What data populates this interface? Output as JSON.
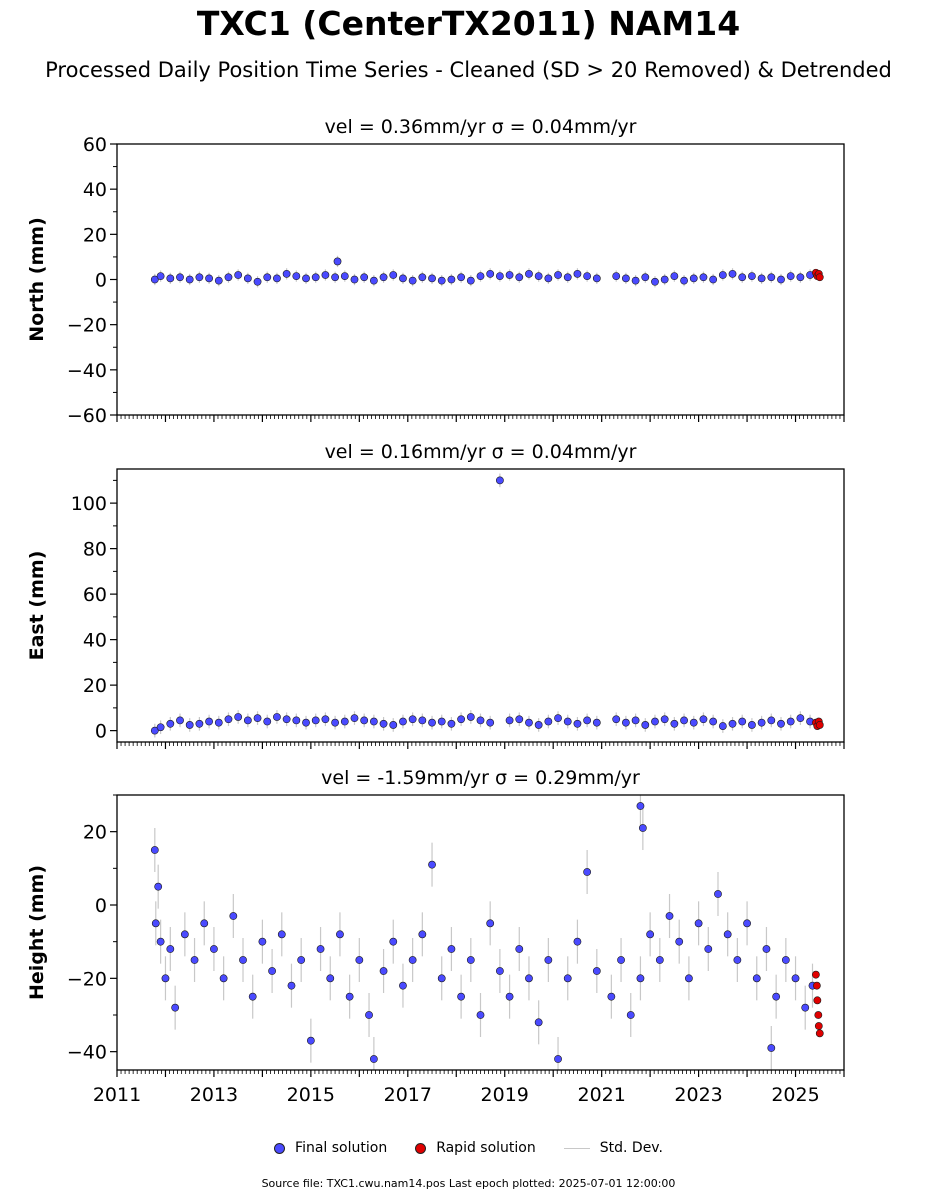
{
  "title": "TXC1 (CenterTX2011) NAM14",
  "subtitle": "Processed Daily Position Time Series - Cleaned (SD > 20 Removed) & Detrended",
  "legend": {
    "final": "Final solution",
    "rapid": "Rapid solution",
    "std": "Std. Dev."
  },
  "footer": "Source file: TXC1.cwu.nam14.pos  Last epoch plotted: 2025-07-01 12:00:00",
  "colors": {
    "final": "#4a4aff",
    "rapid": "#e00000",
    "std": "#c8c8c8",
    "edge": "#1a1a1a"
  },
  "chart_data": [
    {
      "type": "scatter",
      "title": "vel = 0.36mm/yr   σ = 0.04mm/yr",
      "ylabel": "North (mm)",
      "xlim": [
        2011.0,
        2026.0
      ],
      "ylim": [
        -60,
        60
      ],
      "yticks": [
        "−60",
        "−40",
        "−20",
        "0",
        "20",
        "40",
        "60"
      ],
      "ytick_values": [
        -60,
        -40,
        -20,
        0,
        20,
        40,
        60
      ],
      "series": [
        {
          "points": [
            [
              2011.78,
              0.0
            ],
            [
              2011.9,
              1.5
            ],
            [
              2012.1,
              0.5
            ],
            [
              2012.3,
              1.0
            ],
            [
              2012.5,
              0.0
            ],
            [
              2012.7,
              1.0
            ],
            [
              2012.9,
              0.5
            ],
            [
              2013.1,
              -0.5
            ],
            [
              2013.3,
              1.0
            ],
            [
              2013.5,
              2.0
            ],
            [
              2013.7,
              0.5
            ],
            [
              2013.9,
              -1.0
            ],
            [
              2014.1,
              1.0
            ],
            [
              2014.3,
              0.5
            ],
            [
              2014.5,
              2.5
            ],
            [
              2014.7,
              1.5
            ],
            [
              2014.9,
              0.5
            ],
            [
              2015.1,
              1.0
            ],
            [
              2015.3,
              2.0
            ],
            [
              2015.5,
              1.0
            ],
            [
              2015.55,
              8.0
            ],
            [
              2015.7,
              1.5
            ],
            [
              2015.9,
              0.0
            ],
            [
              2016.1,
              1.0
            ],
            [
              2016.3,
              -0.5
            ],
            [
              2016.5,
              1.0
            ],
            [
              2016.7,
              2.0
            ],
            [
              2016.9,
              0.5
            ],
            [
              2017.1,
              -0.5
            ],
            [
              2017.3,
              1.0
            ],
            [
              2017.5,
              0.5
            ],
            [
              2017.7,
              -0.5
            ],
            [
              2017.9,
              0.0
            ],
            [
              2018.1,
              1.0
            ],
            [
              2018.3,
              -0.5
            ],
            [
              2018.5,
              1.5
            ],
            [
              2018.7,
              2.5
            ],
            [
              2018.9,
              1.5
            ],
            [
              2019.1,
              2.0
            ],
            [
              2019.3,
              1.0
            ],
            [
              2019.5,
              2.5
            ],
            [
              2019.7,
              1.5
            ],
            [
              2019.9,
              0.5
            ],
            [
              2020.1,
              2.0
            ],
            [
              2020.3,
              1.0
            ],
            [
              2020.5,
              2.5
            ],
            [
              2020.7,
              1.5
            ],
            [
              2020.9,
              0.5
            ],
            [
              2021.3,
              1.5
            ],
            [
              2021.5,
              0.5
            ],
            [
              2021.7,
              -0.5
            ],
            [
              2021.9,
              1.0
            ],
            [
              2022.1,
              -1.0
            ],
            [
              2022.3,
              0.0
            ],
            [
              2022.5,
              1.5
            ],
            [
              2022.7,
              -0.5
            ],
            [
              2022.9,
              0.5
            ],
            [
              2023.1,
              1.0
            ],
            [
              2023.3,
              0.0
            ],
            [
              2023.5,
              2.0
            ],
            [
              2023.7,
              2.5
            ],
            [
              2023.9,
              1.0
            ],
            [
              2024.1,
              1.5
            ],
            [
              2024.3,
              0.5
            ],
            [
              2024.5,
              1.0
            ],
            [
              2024.7,
              0.0
            ],
            [
              2024.9,
              1.5
            ],
            [
              2025.1,
              1.0
            ],
            [
              2025.3,
              2.0
            ]
          ],
          "std": 2.5
        },
        {
          "points": [
            [
              2025.42,
              3.0
            ],
            [
              2025.45,
              1.5
            ],
            [
              2025.48,
              2.5
            ],
            [
              2025.5,
              1.0
            ]
          ]
        }
      ]
    },
    {
      "type": "scatter",
      "title": "vel = 0.16mm/yr   σ = 0.04mm/yr",
      "ylabel": "East (mm)",
      "xlim": [
        2011.0,
        2026.0
      ],
      "ylim": [
        -5,
        115
      ],
      "yticks": [
        "0",
        "20",
        "40",
        "60",
        "80",
        "100"
      ],
      "ytick_values": [
        0,
        20,
        40,
        60,
        80,
        100
      ],
      "series": [
        {
          "points": [
            [
              2011.78,
              0.0
            ],
            [
              2011.9,
              1.5
            ],
            [
              2012.1,
              3.0
            ],
            [
              2012.3,
              4.5
            ],
            [
              2012.5,
              2.5
            ],
            [
              2012.7,
              3.0
            ],
            [
              2012.9,
              4.0
            ],
            [
              2013.1,
              3.5
            ],
            [
              2013.3,
              5.0
            ],
            [
              2013.5,
              6.0
            ],
            [
              2013.7,
              4.5
            ],
            [
              2013.9,
              5.5
            ],
            [
              2014.1,
              4.0
            ],
            [
              2014.3,
              6.0
            ],
            [
              2014.5,
              5.0
            ],
            [
              2014.7,
              4.5
            ],
            [
              2014.9,
              3.5
            ],
            [
              2015.1,
              4.5
            ],
            [
              2015.3,
              5.0
            ],
            [
              2015.5,
              3.5
            ],
            [
              2015.7,
              4.0
            ],
            [
              2015.9,
              5.5
            ],
            [
              2016.1,
              4.5
            ],
            [
              2016.3,
              4.0
            ],
            [
              2016.5,
              3.0
            ],
            [
              2016.7,
              2.5
            ],
            [
              2016.9,
              4.0
            ],
            [
              2017.1,
              5.0
            ],
            [
              2017.3,
              4.5
            ],
            [
              2017.5,
              3.5
            ],
            [
              2017.7,
              4.0
            ],
            [
              2017.9,
              3.0
            ],
            [
              2018.1,
              5.0
            ],
            [
              2018.3,
              6.0
            ],
            [
              2018.5,
              4.5
            ],
            [
              2018.7,
              3.5
            ],
            [
              2018.9,
              110.0
            ],
            [
              2019.1,
              4.5
            ],
            [
              2019.3,
              5.0
            ],
            [
              2019.5,
              3.5
            ],
            [
              2019.7,
              2.5
            ],
            [
              2019.9,
              4.0
            ],
            [
              2020.1,
              5.5
            ],
            [
              2020.3,
              4.0
            ],
            [
              2020.5,
              3.0
            ],
            [
              2020.7,
              4.5
            ],
            [
              2020.9,
              3.5
            ],
            [
              2021.3,
              5.0
            ],
            [
              2021.5,
              3.5
            ],
            [
              2021.7,
              4.5
            ],
            [
              2021.9,
              2.5
            ],
            [
              2022.1,
              4.0
            ],
            [
              2022.3,
              5.0
            ],
            [
              2022.5,
              3.0
            ],
            [
              2022.7,
              4.5
            ],
            [
              2022.9,
              3.5
            ],
            [
              2023.1,
              5.0
            ],
            [
              2023.3,
              4.0
            ],
            [
              2023.5,
              2.0
            ],
            [
              2023.7,
              3.0
            ],
            [
              2023.9,
              4.0
            ],
            [
              2024.1,
              2.5
            ],
            [
              2024.3,
              3.5
            ],
            [
              2024.5,
              4.5
            ],
            [
              2024.7,
              3.0
            ],
            [
              2024.9,
              4.0
            ],
            [
              2025.1,
              5.5
            ],
            [
              2025.3,
              4.0
            ]
          ],
          "std": 3.0
        },
        {
          "points": [
            [
              2025.42,
              3.5
            ],
            [
              2025.45,
              2.0
            ],
            [
              2025.48,
              4.0
            ],
            [
              2025.5,
              2.5
            ]
          ]
        }
      ]
    },
    {
      "type": "scatter",
      "title": "vel = -1.59mm/yr   σ = 0.29mm/yr",
      "ylabel": "Height (mm)",
      "xlim": [
        2011.0,
        2026.0
      ],
      "ylim": [
        -45,
        30
      ],
      "yticks": [
        "−40",
        "−20",
        "0",
        "20"
      ],
      "ytick_values": [
        -40,
        -20,
        0,
        20
      ],
      "xticks": [
        "2011",
        "2013",
        "2015",
        "2017",
        "2019",
        "2021",
        "2023",
        "2025"
      ],
      "xtick_values": [
        2011,
        2013,
        2015,
        2017,
        2019,
        2021,
        2023,
        2025
      ],
      "series": [
        {
          "points": [
            [
              2011.78,
              15.0
            ],
            [
              2011.8,
              -5.0
            ],
            [
              2011.85,
              5.0
            ],
            [
              2011.9,
              -10.0
            ],
            [
              2012.0,
              -20.0
            ],
            [
              2012.1,
              -12.0
            ],
            [
              2012.2,
              -28.0
            ],
            [
              2012.4,
              -8.0
            ],
            [
              2012.6,
              -15.0
            ],
            [
              2012.8,
              -5.0
            ],
            [
              2013.0,
              -12.0
            ],
            [
              2013.2,
              -20.0
            ],
            [
              2013.4,
              -3.0
            ],
            [
              2013.6,
              -15.0
            ],
            [
              2013.8,
              -25.0
            ],
            [
              2014.0,
              -10.0
            ],
            [
              2014.2,
              -18.0
            ],
            [
              2014.4,
              -8.0
            ],
            [
              2014.6,
              -22.0
            ],
            [
              2014.8,
              -15.0
            ],
            [
              2015.0,
              -37.0
            ],
            [
              2015.2,
              -12.0
            ],
            [
              2015.4,
              -20.0
            ],
            [
              2015.6,
              -8.0
            ],
            [
              2015.8,
              -25.0
            ],
            [
              2016.0,
              -15.0
            ],
            [
              2016.2,
              -30.0
            ],
            [
              2016.3,
              -42.0
            ],
            [
              2016.5,
              -18.0
            ],
            [
              2016.7,
              -10.0
            ],
            [
              2016.9,
              -22.0
            ],
            [
              2017.1,
              -15.0
            ],
            [
              2017.3,
              -8.0
            ],
            [
              2017.5,
              11.0
            ],
            [
              2017.7,
              -20.0
            ],
            [
              2017.9,
              -12.0
            ],
            [
              2018.1,
              -25.0
            ],
            [
              2018.3,
              -15.0
            ],
            [
              2018.5,
              -30.0
            ],
            [
              2018.7,
              -5.0
            ],
            [
              2018.9,
              -18.0
            ],
            [
              2019.1,
              -25.0
            ],
            [
              2019.3,
              -12.0
            ],
            [
              2019.5,
              -20.0
            ],
            [
              2019.7,
              -32.0
            ],
            [
              2019.9,
              -15.0
            ],
            [
              2020.1,
              -42.0
            ],
            [
              2020.3,
              -20.0
            ],
            [
              2020.5,
              -10.0
            ],
            [
              2020.7,
              9.0
            ],
            [
              2020.9,
              -18.0
            ],
            [
              2021.2,
              -25.0
            ],
            [
              2021.4,
              -15.0
            ],
            [
              2021.6,
              -30.0
            ],
            [
              2021.8,
              -20.0
            ],
            [
              2021.8,
              27.0
            ],
            [
              2021.85,
              21.0
            ],
            [
              2022.0,
              -8.0
            ],
            [
              2022.2,
              -15.0
            ],
            [
              2022.4,
              -3.0
            ],
            [
              2022.6,
              -10.0
            ],
            [
              2022.8,
              -20.0
            ],
            [
              2023.0,
              -5.0
            ],
            [
              2023.2,
              -12.0
            ],
            [
              2023.4,
              3.0
            ],
            [
              2023.6,
              -8.0
            ],
            [
              2023.8,
              -15.0
            ],
            [
              2024.0,
              -5.0
            ],
            [
              2024.2,
              -20.0
            ],
            [
              2024.4,
              -12.0
            ],
            [
              2024.5,
              -39.0
            ],
            [
              2024.6,
              -25.0
            ],
            [
              2024.8,
              -15.0
            ],
            [
              2025.0,
              -20.0
            ],
            [
              2025.2,
              -28.0
            ],
            [
              2025.35,
              -22.0
            ]
          ],
          "std": 6.0
        },
        {
          "points": [
            [
              2025.42,
              -19.0
            ],
            [
              2025.44,
              -22.0
            ],
            [
              2025.45,
              -26.0
            ],
            [
              2025.47,
              -30.0
            ],
            [
              2025.48,
              -33.0
            ],
            [
              2025.5,
              -35.0
            ]
          ]
        }
      ]
    }
  ]
}
